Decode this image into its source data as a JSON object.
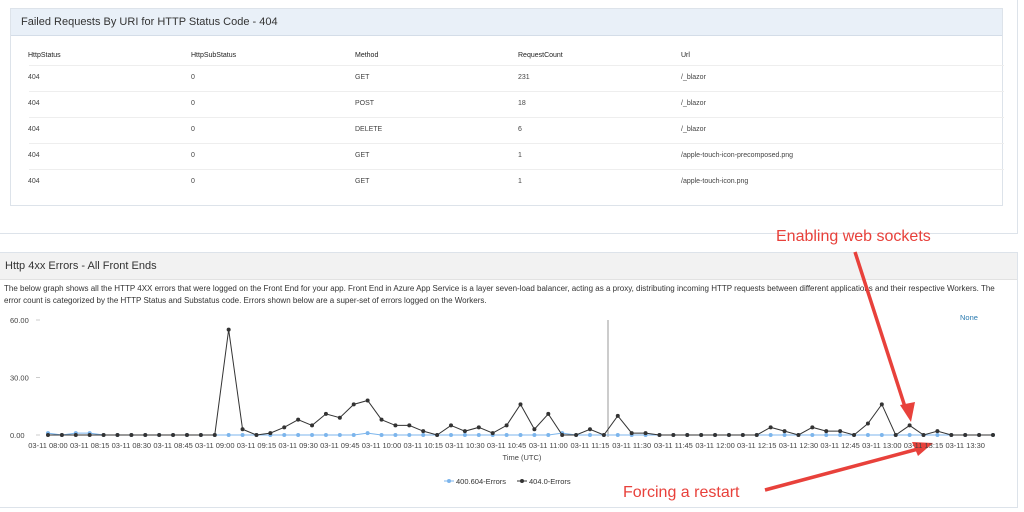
{
  "table_panel": {
    "title": "Failed Requests By URI for HTTP Status Code - 404",
    "table": {
      "headers": [
        "HttpStatus",
        "HttpSubStatus",
        "Method",
        "RequestCount",
        "Url"
      ],
      "rows": [
        [
          "404",
          "0",
          "GET",
          "231",
          "/_blazor"
        ],
        [
          "404",
          "0",
          "POST",
          "18",
          "/_blazor"
        ],
        [
          "404",
          "0",
          "DELETE",
          "6",
          "/_blazor"
        ],
        [
          "404",
          "0",
          "GET",
          "1",
          "/apple-touch-icon-precomposed.png"
        ],
        [
          "404",
          "0",
          "GET",
          "1",
          "/apple-touch-icon.png"
        ]
      ]
    }
  },
  "chart_panel": {
    "description": "The below graph shows all the HTTP 4XX errors that were logged on the Front End for your app. Front End in Azure App Service is a layer seven-load balancer, acting as a proxy, distributing incoming HTTP requests between different applications and their respective Workers. The error count is categorized by the HTTP Status and Substatus code. Errors shown below are a super-set of errors logged on the Workers.",
    "link": "None"
  },
  "chart_data": {
    "type": "line",
    "title": "Http 4xx Errors - All Front Ends",
    "x_label": "Time (UTC)",
    "categories": [
      "03-11 08:00",
      null,
      null,
      "03-11 08:15",
      null,
      null,
      "03-11 08:30",
      null,
      null,
      "03-11 08:45",
      null,
      null,
      "03-11 09:00",
      null,
      null,
      "03-11 09:15",
      null,
      null,
      "03-11 09:30",
      null,
      null,
      "03-11 09:45",
      null,
      null,
      "03-11 10:00",
      null,
      null,
      "03-11 10:15",
      null,
      null,
      "03-11 10:30",
      null,
      null,
      "03-11 10:45",
      null,
      null,
      "03-11 11:00",
      null,
      null,
      "03-11 11:15",
      null,
      null,
      "03-11 11:30",
      null,
      null,
      "03-11 11:45",
      null,
      null,
      "03-11 12:00",
      null,
      null,
      "03-11 12:15",
      null,
      null,
      "03-11 12:30",
      null,
      null,
      "03-11 12:45",
      null,
      null,
      "03-11 13:00",
      null,
      null,
      "03-11 13:15",
      null,
      null,
      "03-11 13:30",
      null,
      null
    ],
    "series": [
      {
        "name": "400.604-Errors",
        "color": "#7cb5ec",
        "values": [
          1,
          0,
          1,
          1,
          0,
          0,
          0,
          0,
          0,
          0,
          0,
          0,
          0,
          0,
          0,
          0,
          0,
          0,
          0,
          0,
          0,
          0,
          0,
          1,
          0,
          0,
          0,
          0,
          0,
          0,
          0,
          0,
          0,
          0,
          0,
          0,
          0,
          1,
          0,
          0,
          0,
          0,
          0,
          0,
          0,
          0,
          0,
          0,
          0,
          0,
          0,
          0,
          0,
          0,
          0,
          0,
          0,
          0,
          0,
          0,
          0,
          0,
          0,
          0,
          0,
          0,
          0,
          0,
          0
        ]
      },
      {
        "name": "404.0-Errors",
        "color": "#333333",
        "values": [
          0,
          0,
          0,
          0,
          0,
          0,
          0,
          0,
          0,
          0,
          0,
          0,
          0,
          55,
          3,
          0,
          1,
          4,
          8,
          5,
          11,
          9,
          16,
          18,
          8,
          5,
          5,
          2,
          0,
          5,
          2,
          4,
          1,
          5,
          16,
          3,
          11,
          0,
          0,
          3,
          0,
          10,
          1,
          1,
          0,
          0,
          0,
          0,
          0,
          0,
          0,
          0,
          4,
          2,
          0,
          4,
          2,
          2,
          0,
          6,
          16,
          0,
          5,
          0,
          2,
          0,
          0,
          0,
          0
        ]
      }
    ],
    "ylim": [
      0,
      60
    ],
    "yticks": [
      {
        "value": 0,
        "label": "0.00"
      },
      {
        "value": 30,
        "label": "30.00"
      },
      {
        "value": 60,
        "label": "60.00"
      }
    ],
    "grid": false,
    "legend": "bottom",
    "annotations": [
      {
        "text": "Enabling web sockets"
      },
      {
        "text": "Forcing a restart"
      }
    ]
  }
}
